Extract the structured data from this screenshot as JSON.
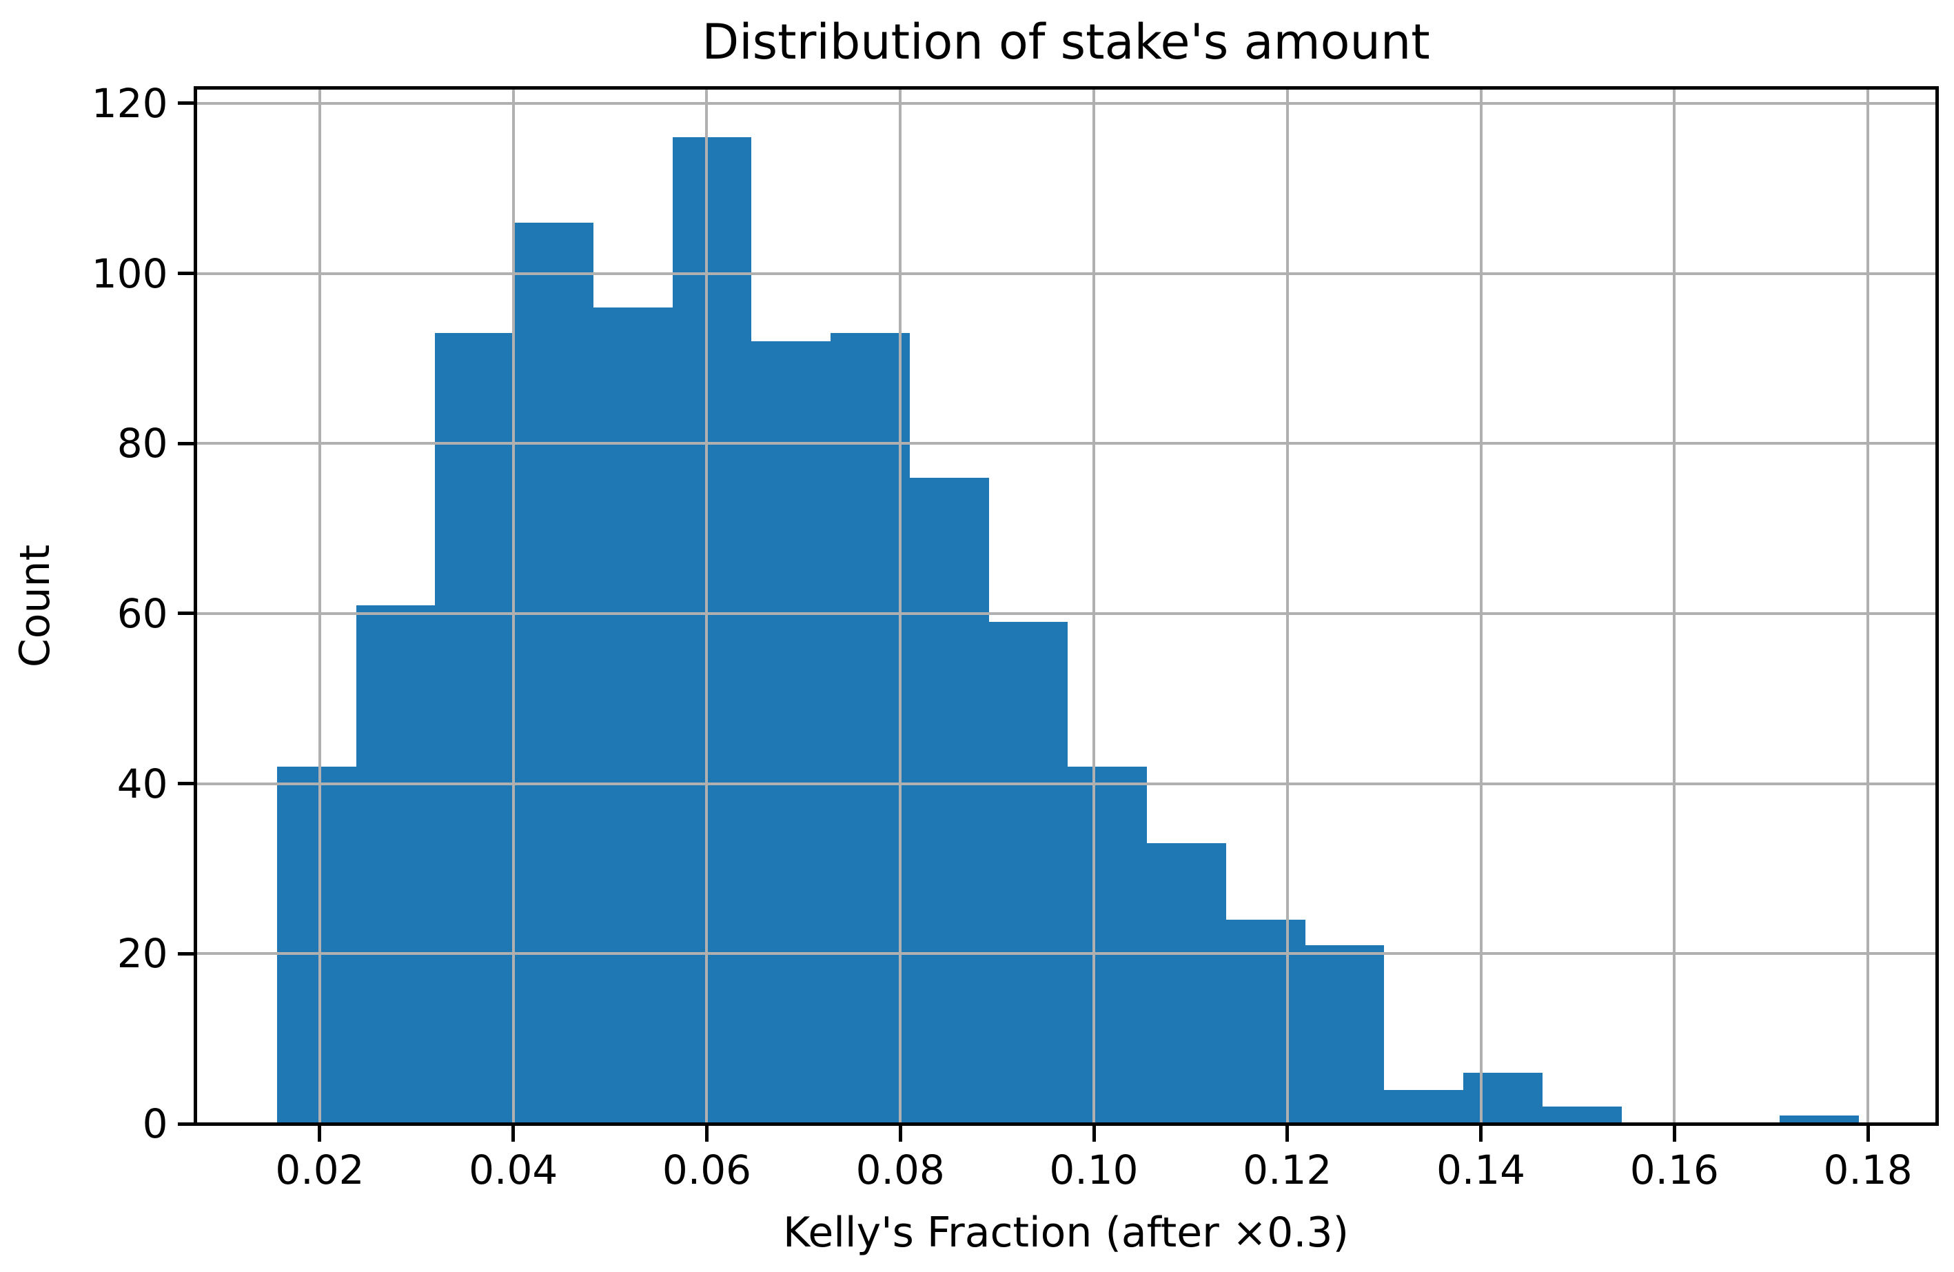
{
  "title": "Distribution of stake's amount",
  "x_axis": {
    "label": "Kelly's Fraction (after ×0.3)",
    "ticks": [
      {
        "value": 0.02,
        "label": "0.02"
      },
      {
        "value": 0.04,
        "label": "0.04"
      },
      {
        "value": 0.06,
        "label": "0.06"
      },
      {
        "value": 0.08,
        "label": "0.08"
      },
      {
        "value": 0.1,
        "label": "0.10"
      },
      {
        "value": 0.12,
        "label": "0.12"
      },
      {
        "value": 0.14,
        "label": "0.14"
      },
      {
        "value": 0.16,
        "label": "0.16"
      },
      {
        "value": 0.18,
        "label": "0.18"
      }
    ]
  },
  "y_axis": {
    "label": "Count",
    "ticks": [
      {
        "value": 0,
        "label": "0"
      },
      {
        "value": 20,
        "label": "20"
      },
      {
        "value": 40,
        "label": "40"
      },
      {
        "value": 60,
        "label": "60"
      },
      {
        "value": 80,
        "label": "80"
      },
      {
        "value": 100,
        "label": "100"
      },
      {
        "value": 120,
        "label": "120"
      }
    ]
  },
  "colors": {
    "bar": "#1f77b4",
    "grid": "#b0b0b0",
    "spine": "#000000",
    "background": "#ffffff",
    "text": "#000000"
  },
  "chart_data": {
    "type": "bar",
    "subtype": "histogram",
    "title": "Distribution of stake's amount",
    "xlabel": "Kelly's Fraction (after ×0.3)",
    "ylabel": "Count",
    "bin_start": 0.01558,
    "bin_width": 0.008174,
    "bin_edges": [
      0.01558,
      0.02375,
      0.03193,
      0.0401,
      0.04828,
      0.05645,
      0.06462,
      0.0728,
      0.08097,
      0.08915,
      0.09732,
      0.10549,
      0.11367,
      0.12184,
      0.13002,
      0.13819,
      0.14636,
      0.15454,
      0.16271,
      0.17089,
      0.17906
    ],
    "counts": [
      42,
      61,
      93,
      106,
      96,
      116,
      92,
      93,
      76,
      59,
      42,
      33,
      24,
      21,
      4,
      6,
      2,
      0,
      0,
      1
    ],
    "xlim": [
      0.00711,
      0.18712
    ],
    "ylim": [
      0,
      121.85
    ],
    "x_tick_values": [
      0.02,
      0.04,
      0.06,
      0.08,
      0.1,
      0.12,
      0.14,
      0.16,
      0.18
    ],
    "y_tick_values": [
      0,
      20,
      40,
      60,
      80,
      100,
      120
    ],
    "grid": true,
    "grid_above_bars": true,
    "legend": null
  }
}
